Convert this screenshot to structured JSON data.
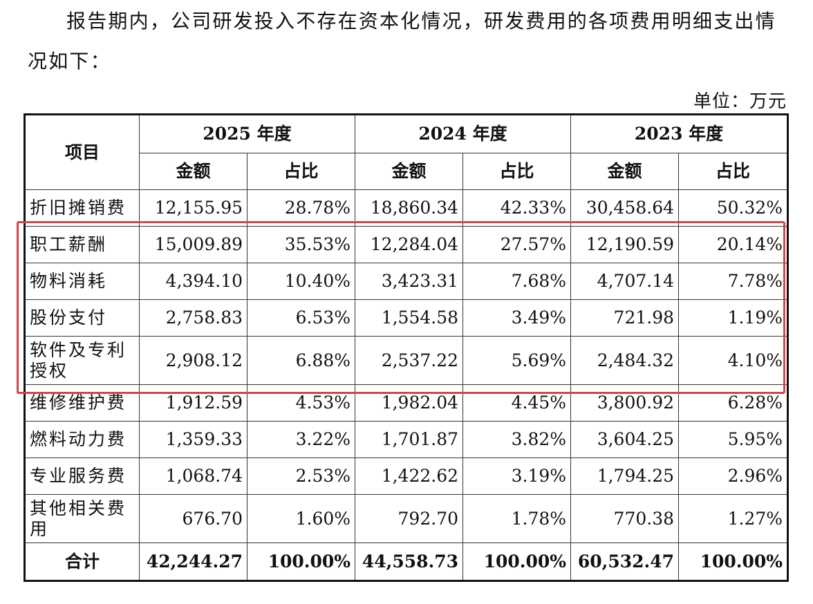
{
  "intro_text": "报告期内，公司研发投入不存在资本化情况，研发费用的各项费用明细支出情况如下：",
  "unit_label": "单位：万元",
  "table": {
    "item_header": "项目",
    "years": [
      "2025 年度",
      "2024 年度",
      "2023 年度"
    ],
    "amount_label": "金额",
    "ratio_label": "占比",
    "rows": [
      {
        "name": "折旧摊销费",
        "values": [
          "12,155.95",
          "28.78%",
          "18,860.34",
          "42.33%",
          "30,458.64",
          "50.32%"
        ]
      },
      {
        "name": "职工薪酬",
        "values": [
          "15,009.89",
          "35.53%",
          "12,284.04",
          "27.57%",
          "12,190.59",
          "20.14%"
        ]
      },
      {
        "name": "物料消耗",
        "values": [
          "4,394.10",
          "10.40%",
          "3,423.31",
          "7.68%",
          "4,707.14",
          "7.78%"
        ]
      },
      {
        "name": "股份支付",
        "values": [
          "2,758.83",
          "6.53%",
          "1,554.58",
          "3.49%",
          "721.98",
          "1.19%"
        ]
      },
      {
        "name": "软件及专利授权",
        "values": [
          "2,908.12",
          "6.88%",
          "2,537.22",
          "5.69%",
          "2,484.32",
          "4.10%"
        ]
      },
      {
        "name": "维修维护费",
        "values": [
          "1,912.59",
          "4.53%",
          "1,982.04",
          "4.45%",
          "3,800.92",
          "6.28%"
        ]
      },
      {
        "name": "燃料动力费",
        "values": [
          "1,359.33",
          "3.22%",
          "1,701.87",
          "3.82%",
          "3,604.25",
          "5.95%"
        ]
      },
      {
        "name": "专业服务费",
        "values": [
          "1,068.74",
          "2.53%",
          "1,422.62",
          "3.19%",
          "1,794.25",
          "2.96%"
        ]
      },
      {
        "name": "其他相关费用",
        "values": [
          "676.70",
          "1.60%",
          "792.70",
          "1.78%",
          "770.38",
          "1.27%"
        ]
      }
    ],
    "total": {
      "name": "合计",
      "values": [
        "42,244.27",
        "100.00%",
        "44,558.73",
        "100.00%",
        "60,532.47",
        "100.00%"
      ]
    }
  },
  "highlight_color": "#d64545"
}
